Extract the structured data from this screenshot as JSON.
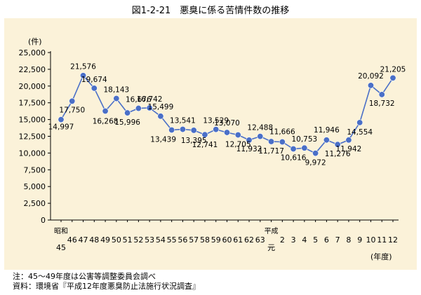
{
  "figure_title": "図1-2-21　悪臭に係る苦情件数の推移",
  "notes": [
    "注：45～49年度は公害等調整委員会調べ",
    "資料：環境省『平成12年度悪臭防止法施行状況調査』"
  ],
  "colors": {
    "panel_bg": "#fbf2d9",
    "line": "#4a6fc7",
    "marker": "#4a6fc7"
  },
  "chart_data": {
    "type": "line",
    "title": "",
    "xlabel": "(年度)",
    "ylabel": "(件)",
    "ylim": [
      0,
      25000
    ],
    "yticks": [
      "0",
      "2,500",
      "5,000",
      "7,500",
      "10,000",
      "12,500",
      "15,000",
      "17,500",
      "20,000",
      "22,500",
      "25,000"
    ],
    "x_era_labels": [
      {
        "index": 0,
        "text": "昭和",
        "sub": "45"
      },
      {
        "index": 20,
        "text": "平成",
        "sub": "元"
      }
    ],
    "categories": [
      "45",
      "46",
      "47",
      "48",
      "49",
      "50",
      "51",
      "52",
      "53",
      "54",
      "55",
      "56",
      "57",
      "58",
      "59",
      "60",
      "61",
      "62",
      "63",
      "元",
      "2",
      "3",
      "4",
      "5",
      "6",
      "7",
      "8",
      "9",
      "10",
      "11",
      "12"
    ],
    "tick_labels": [
      "",
      "46",
      "47",
      "48",
      "49",
      "50",
      "51",
      "52",
      "53",
      "54",
      "55",
      "56",
      "57",
      "58",
      "59",
      "60",
      "61",
      "62",
      "63",
      "",
      "2",
      "3",
      "4",
      "5",
      "6",
      "7",
      "8",
      "9",
      "10",
      "11",
      "12"
    ],
    "values": [
      14997,
      17750,
      21576,
      19674,
      16268,
      18143,
      15996,
      16676,
      16742,
      15499,
      13439,
      13541,
      13395,
      12741,
      13529,
      13070,
      12705,
      11932,
      12488,
      11717,
      11666,
      10616,
      10753,
      9972,
      11946,
      11276,
      11942,
      14554,
      20092,
      18732,
      21205
    ],
    "data_labels": [
      "14,997",
      "17,750",
      "21,576",
      "19,674",
      "16,268",
      "18,143",
      "15,996",
      "16,676",
      "16,742",
      "15,499",
      "13,439",
      "13,541",
      "13,395",
      "12,741",
      "13,529",
      "13,070",
      "12,705",
      "11,932",
      "12,488",
      "11,717",
      "11,666",
      "10,616",
      "10,753",
      "9,972",
      "11,946",
      "11,276",
      "11,942",
      "14,554",
      "20,092",
      "18,732",
      "21,205"
    ],
    "grid": false,
    "legend": "none"
  }
}
